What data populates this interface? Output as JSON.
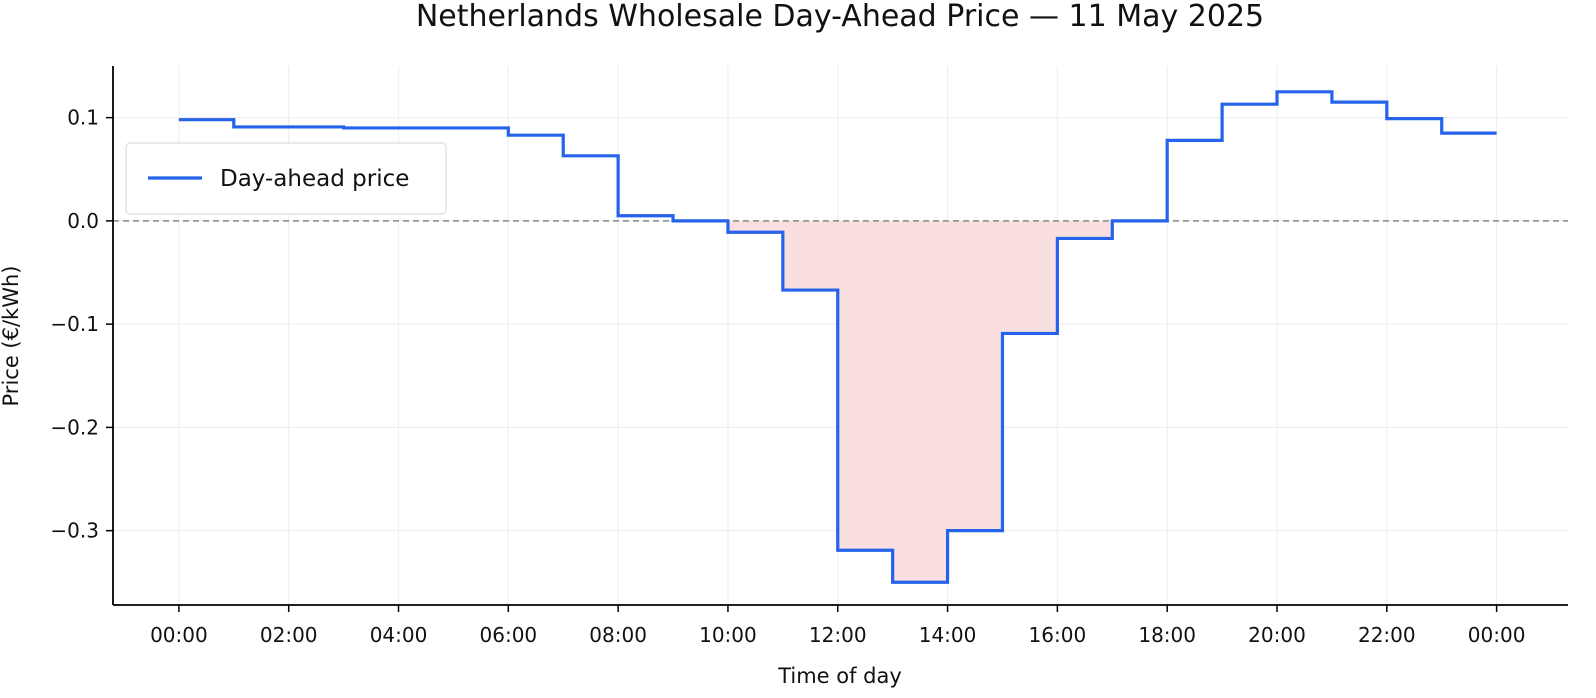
{
  "chart_data": {
    "type": "line",
    "step": "post",
    "title": "Netherlands Wholesale Day-Ahead Price — 11 May 2025",
    "xlabel": "Time of day",
    "ylabel": "Price (€/kWh)",
    "x_ticks": [
      "00:00",
      "02:00",
      "04:00",
      "06:00",
      "08:00",
      "10:00",
      "12:00",
      "14:00",
      "16:00",
      "18:00",
      "20:00",
      "22:00",
      "00:00"
    ],
    "y_ticks": [
      "0.1",
      "0.0",
      "−0.1",
      "−0.2",
      "−0.3"
    ],
    "y_tick_values": [
      0.1,
      0.0,
      -0.1,
      -0.2,
      -0.3
    ],
    "xlim_hours": [
      -1.2,
      25.3
    ],
    "ylim": [
      -0.372,
      0.15
    ],
    "grid": true,
    "zero_line": true,
    "negative_fill": true,
    "legend_position": "upper-left",
    "series": [
      {
        "name": "Day-ahead price",
        "hours": [
          0,
          1,
          2,
          3,
          4,
          5,
          6,
          7,
          8,
          9,
          10,
          11,
          12,
          13,
          14,
          15,
          16,
          17,
          18,
          19,
          20,
          21,
          22,
          23,
          24
        ],
        "values": [
          0.098,
          0.091,
          0.091,
          0.09,
          0.09,
          0.09,
          0.083,
          0.063,
          0.005,
          0.0,
          -0.011,
          -0.067,
          -0.319,
          -0.35,
          -0.3,
          -0.109,
          -0.017,
          0.0,
          0.078,
          0.113,
          0.125,
          0.115,
          0.099,
          0.085,
          0.085
        ]
      }
    ],
    "colors": {
      "line": "#2563eb",
      "negative_fill": "#fadfe1",
      "zero_line": "#888888",
      "grid": "#efefef",
      "axis": "#000000"
    }
  }
}
